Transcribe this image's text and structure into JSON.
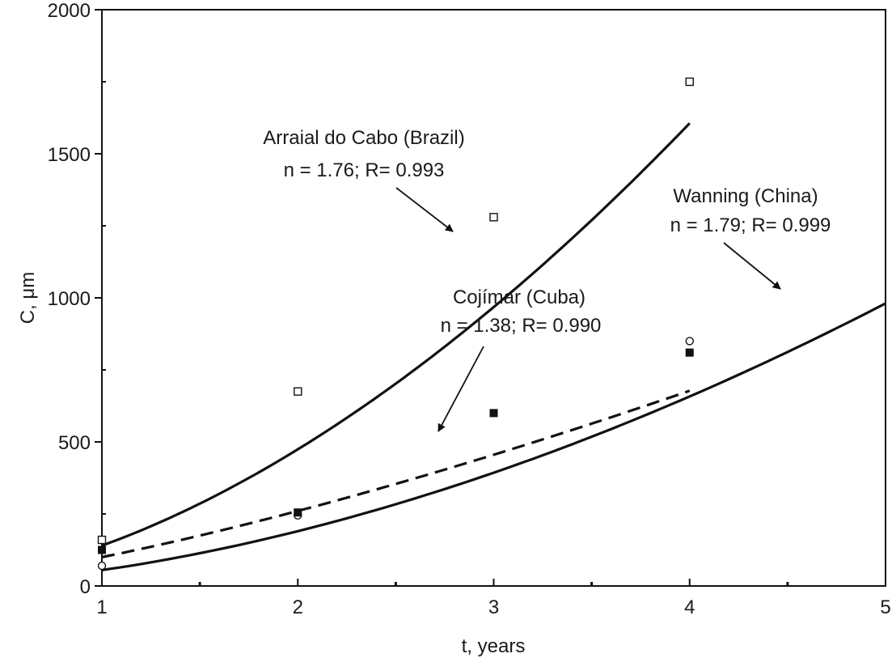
{
  "chart_data": {
    "type": "line",
    "xlabel": "t, years",
    "ylabel": "C, μm",
    "xlim": [
      1,
      5
    ],
    "ylim": [
      0,
      2000
    ],
    "x_ticks": [
      1,
      2,
      3,
      4,
      5
    ],
    "y_ticks": [
      0,
      500,
      1000,
      1500,
      2000
    ],
    "x_minor_ticks": [
      1.5,
      2.5,
      3.5,
      4.5
    ],
    "grid": false,
    "legend": "none",
    "series": [
      {
        "key": "brazil",
        "marker": "open-square",
        "points": [
          {
            "x": 1,
            "y": 160
          },
          {
            "x": 2,
            "y": 675
          },
          {
            "x": 3,
            "y": 1280
          },
          {
            "x": 4,
            "y": 1750
          }
        ],
        "fit": {
          "type": "power",
          "n": 1.76,
          "k": 140,
          "x_range": [
            1,
            4
          ]
        }
      },
      {
        "key": "china",
        "marker": "open-circle",
        "points": [
          {
            "x": 1,
            "y": 70
          },
          {
            "x": 2,
            "y": 245
          },
          {
            "x": 4,
            "y": 850
          }
        ],
        "fit": {
          "type": "power",
          "n": 1.79,
          "k": 55,
          "x_range": [
            1,
            5
          ]
        }
      },
      {
        "key": "cuba",
        "marker": "filled-square",
        "points": [
          {
            "x": 1,
            "y": 125
          },
          {
            "x": 2,
            "y": 255
          },
          {
            "x": 3,
            "y": 600
          },
          {
            "x": 4,
            "y": 810
          }
        ],
        "fit": {
          "type": "power",
          "n": 1.38,
          "k": 100,
          "x_range": [
            1,
            4
          ]
        }
      }
    ],
    "annotations": [
      {
        "key": "brazil",
        "site": "Arraial do Cabo (Brazil)",
        "stats": "n = 1.76;  R= 0.993"
      },
      {
        "key": "china",
        "site": "Wanning (China)",
        "stats": "n = 1.79;  R= 0.999"
      },
      {
        "key": "cuba",
        "site": "Cojímar (Cuba)",
        "stats": "n = 1.38;  R= 0.990"
      }
    ]
  }
}
